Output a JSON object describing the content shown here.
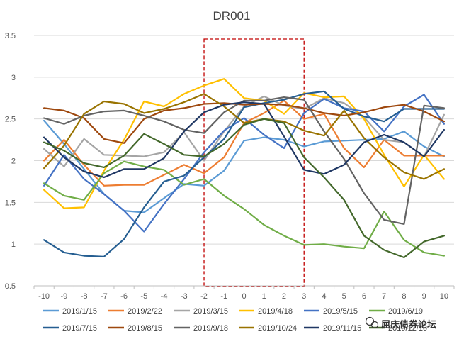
{
  "chart_data": {
    "type": "line",
    "title": "DR001",
    "xlabel": "",
    "ylabel": "",
    "x": [
      -10,
      -9,
      -8,
      -7,
      -6,
      -5,
      -4,
      -3,
      -2,
      -1,
      0,
      1,
      2,
      3,
      4,
      5,
      6,
      7,
      8,
      9,
      10
    ],
    "ylim": [
      0.5,
      3.5
    ],
    "yticks": [
      0.5,
      1,
      1.5,
      2,
      2.5,
      3,
      3.5
    ],
    "ytick_labels": [
      "0.5",
      "1",
      "1.5",
      "2",
      "2.5",
      "3",
      "3.5"
    ],
    "xtick_labels": [
      "-10",
      "-9",
      "-8",
      "-7",
      "-6",
      "-5",
      "-4",
      "-3",
      "-2",
      "-1",
      "0",
      "1",
      "2",
      "3",
      "4",
      "5",
      "6",
      "7",
      "8",
      "9",
      "10"
    ],
    "grid": "horizontal",
    "legend_position": "bottom",
    "highlight_range": [
      -2,
      3
    ],
    "series": [
      {
        "name": "2019/1/15",
        "color": "#5b9bd5",
        "values": [
          2.48,
          2.2,
          1.9,
          1.6,
          1.4,
          1.38,
          1.55,
          1.72,
          1.7,
          1.88,
          2.24,
          2.28,
          2.25,
          2.17,
          2.23,
          2.24,
          2.25,
          2.26,
          2.35,
          2.17,
          2.05
        ]
      },
      {
        "name": "2019/2/22",
        "color": "#ed7d31",
        "values": [
          2.0,
          2.25,
          1.95,
          1.7,
          1.71,
          1.71,
          1.83,
          1.95,
          1.85,
          2.04,
          2.45,
          2.57,
          2.72,
          2.5,
          2.56,
          2.15,
          1.92,
          2.25,
          2.06,
          2.06,
          2.06
        ]
      },
      {
        "name": "2019/3/15",
        "color": "#a5a5a5",
        "values": [
          2.14,
          1.93,
          2.26,
          2.07,
          2.06,
          2.05,
          2.1,
          2.34,
          2.0,
          2.35,
          2.65,
          2.77,
          2.66,
          2.62,
          2.75,
          2.69,
          2.52,
          2.25,
          2.22,
          2.05,
          2.55
        ]
      },
      {
        "name": "2019/4/18",
        "color": "#ffc000",
        "values": [
          1.65,
          1.43,
          1.44,
          1.88,
          2.25,
          2.71,
          2.65,
          2.8,
          2.9,
          2.98,
          2.75,
          2.72,
          2.56,
          2.81,
          2.76,
          2.77,
          2.5,
          2.07,
          1.69,
          2.07,
          1.78
        ]
      },
      {
        "name": "2019/5/15",
        "color": "#4472c4",
        "values": [
          1.7,
          2.07,
          1.78,
          1.6,
          1.4,
          1.15,
          1.48,
          1.78,
          2.1,
          2.36,
          2.51,
          2.31,
          2.15,
          2.57,
          2.74,
          2.63,
          2.59,
          2.35,
          2.65,
          2.79,
          2.44
        ]
      },
      {
        "name": "2019/6/19",
        "color": "#70ad47",
        "values": [
          1.73,
          1.58,
          1.53,
          1.85,
          1.99,
          1.93,
          1.89,
          1.71,
          1.78,
          1.58,
          1.42,
          1.23,
          1.1,
          0.99,
          1.0,
          0.97,
          0.95,
          1.39,
          1.05,
          0.9,
          0.86
        ]
      },
      {
        "name": "2019/7/15",
        "color": "#255e91",
        "values": [
          1.05,
          0.9,
          0.86,
          0.85,
          1.06,
          1.44,
          1.75,
          1.82,
          2.04,
          2.26,
          2.64,
          2.69,
          2.73,
          2.8,
          2.83,
          2.62,
          2.53,
          2.47,
          2.62,
          2.62,
          2.62
        ]
      },
      {
        "name": "2019/8/15",
        "color": "#9e480e",
        "values": [
          2.63,
          2.6,
          2.51,
          2.26,
          2.21,
          2.5,
          2.6,
          2.63,
          2.68,
          2.69,
          2.67,
          2.68,
          2.67,
          2.63,
          2.57,
          2.54,
          2.58,
          2.64,
          2.67,
          2.59,
          2.47
        ]
      },
      {
        "name": "2019/9/18",
        "color": "#636363",
        "values": [
          2.51,
          2.44,
          2.54,
          2.59,
          2.6,
          2.54,
          2.47,
          2.37,
          2.33,
          2.58,
          2.72,
          2.72,
          2.76,
          2.73,
          2.35,
          2.02,
          1.61,
          1.29,
          1.24,
          2.66,
          2.63
        ]
      },
      {
        "name": "2019/10/24",
        "color": "#997300",
        "values": [
          1.91,
          2.18,
          2.56,
          2.71,
          2.68,
          2.57,
          2.62,
          2.7,
          2.8,
          2.65,
          2.45,
          2.5,
          2.47,
          2.36,
          2.3,
          2.6,
          2.27,
          2.04,
          1.86,
          1.78,
          1.9
        ]
      },
      {
        "name": "2019/11/15",
        "color": "#203864",
        "values": [
          2.28,
          2.04,
          1.87,
          1.8,
          1.9,
          1.9,
          2.03,
          2.35,
          2.58,
          2.67,
          2.7,
          2.68,
          2.29,
          1.89,
          1.84,
          1.95,
          2.22,
          2.31,
          2.22,
          2.05,
          2.37
        ]
      },
      {
        "name": "2019/12/16",
        "color": "#43682b",
        "values": [
          2.22,
          2.12,
          1.97,
          1.92,
          2.06,
          2.32,
          2.2,
          2.07,
          2.05,
          2.2,
          2.43,
          2.5,
          2.45,
          2.04,
          1.8,
          1.53,
          1.1,
          0.93,
          0.84,
          1.03,
          1.1
        ]
      }
    ]
  },
  "watermark": {
    "text": "屈庆债券论坛",
    "icon": "wechat-icon"
  }
}
